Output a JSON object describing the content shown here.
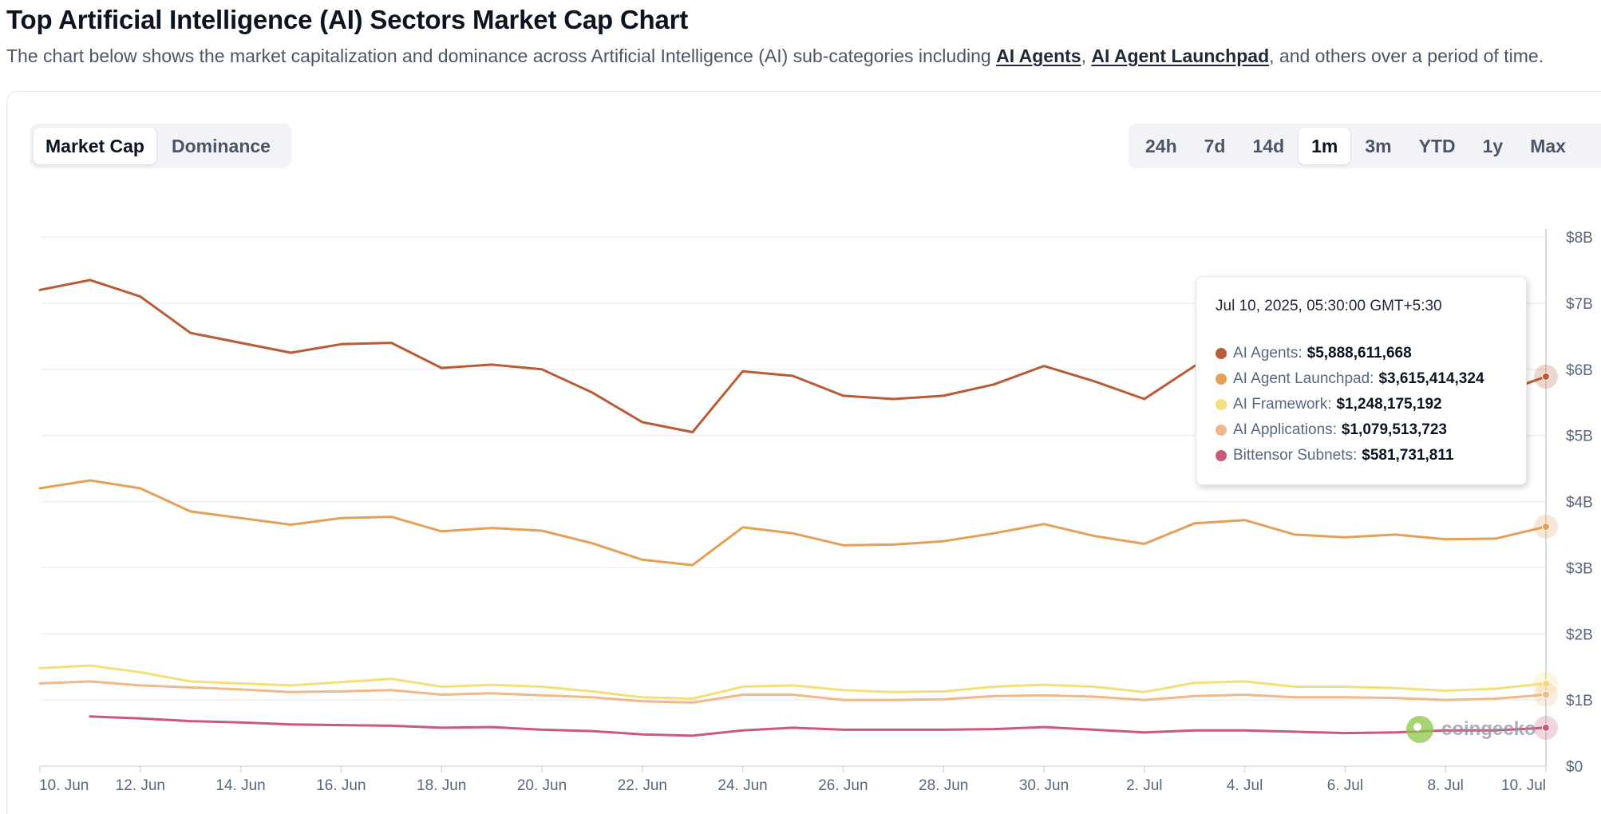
{
  "page": {
    "title": "Top Artificial Intelligence (AI) Sectors Market Cap Chart",
    "desc_before": "The chart below shows the market capitalization and dominance across Artificial Intelligence (AI) sub-categories including ",
    "link1": "AI Agents",
    "desc_sep": ", ",
    "link2": "AI Agent Launchpad",
    "desc_after": ", and others over a period of time."
  },
  "toggles": {
    "market_cap": "Market Cap",
    "dominance": "Dominance",
    "active": "Market Cap"
  },
  "ranges": {
    "items": [
      "24h",
      "7d",
      "14d",
      "1m",
      "3m",
      "YTD",
      "1y",
      "Max"
    ],
    "active": "1m"
  },
  "tooltip": {
    "time": "Jul 10, 2025, 05:30:00 GMT+5:30",
    "rows": [
      {
        "name": "AI Agents",
        "value": "$5,888,611,668",
        "color": "#b95b34"
      },
      {
        "name": "AI Agent Launchpad",
        "value": "$3,615,414,324",
        "color": "#e5a057"
      },
      {
        "name": "AI Framework",
        "value": "$1,248,175,192",
        "color": "#f3e07a"
      },
      {
        "name": "AI Applications",
        "value": "$1,079,513,723",
        "color": "#f1b889"
      },
      {
        "name": "Bittensor Subnets",
        "value": "$581,731,811",
        "color": "#c95b79"
      }
    ]
  },
  "watermark": {
    "text": "coingecko"
  },
  "chart_data": {
    "type": "line",
    "x": [
      "10 Jun",
      "11 Jun",
      "12 Jun",
      "13 Jun",
      "14 Jun",
      "15 Jun",
      "16 Jun",
      "17 Jun",
      "18 Jun",
      "19 Jun",
      "20 Jun",
      "21 Jun",
      "22 Jun",
      "23 Jun",
      "24 Jun",
      "25 Jun",
      "26 Jun",
      "27 Jun",
      "28 Jun",
      "29 Jun",
      "30 Jun",
      "1 Jul",
      "2 Jul",
      "3 Jul",
      "4 Jul",
      "5 Jul",
      "6 Jul",
      "7 Jul",
      "8 Jul",
      "9 Jul",
      "10 Jul"
    ],
    "x_tick_labels": [
      "10. Jun",
      "12. Jun",
      "14. Jun",
      "16. Jun",
      "18. Jun",
      "20. Jun",
      "22. Jun",
      "24. Jun",
      "26. Jun",
      "28. Jun",
      "30. Jun",
      "2. Jul",
      "4. Jul",
      "6. Jul",
      "8. Jul",
      "10. Jul"
    ],
    "y_tick_labels": [
      "$0",
      "$1B",
      "$2B",
      "$3B",
      "$4B",
      "$5B",
      "$6B",
      "$7B",
      "$8B"
    ],
    "ylim": [
      0,
      8
    ],
    "y_unit": "billion USD",
    "grid": true,
    "series": [
      {
        "name": "AI Agents",
        "color": "#b95b34",
        "values": [
          7.2,
          7.35,
          7.1,
          6.55,
          6.4,
          6.25,
          6.38,
          6.4,
          6.02,
          6.07,
          6.0,
          5.65,
          5.2,
          5.05,
          5.97,
          5.9,
          5.6,
          5.55,
          5.6,
          5.77,
          6.05,
          5.82,
          5.55,
          6.05,
          6.25,
          5.95,
          5.8,
          5.5,
          5.95,
          5.62,
          5.89
        ]
      },
      {
        "name": "AI Agent Launchpad",
        "color": "#e5a057",
        "values": [
          4.2,
          4.32,
          4.2,
          3.85,
          3.75,
          3.65,
          3.75,
          3.77,
          3.55,
          3.6,
          3.56,
          3.37,
          3.12,
          3.04,
          3.61,
          3.52,
          3.34,
          3.35,
          3.4,
          3.52,
          3.66,
          3.48,
          3.36,
          3.67,
          3.72,
          3.5,
          3.46,
          3.5,
          3.43,
          3.44,
          3.62
        ]
      },
      {
        "name": "AI Framework",
        "color": "#f3e07a",
        "values": [
          1.48,
          1.52,
          1.42,
          1.28,
          1.25,
          1.22,
          1.27,
          1.32,
          1.2,
          1.23,
          1.2,
          1.13,
          1.04,
          1.02,
          1.2,
          1.22,
          1.15,
          1.12,
          1.13,
          1.2,
          1.23,
          1.2,
          1.12,
          1.26,
          1.28,
          1.2,
          1.2,
          1.18,
          1.14,
          1.17,
          1.25
        ]
      },
      {
        "name": "AI Applications",
        "color": "#f1b889",
        "values": [
          1.25,
          1.28,
          1.22,
          1.19,
          1.16,
          1.12,
          1.13,
          1.15,
          1.08,
          1.1,
          1.07,
          1.04,
          0.98,
          0.96,
          1.08,
          1.08,
          1.0,
          1.0,
          1.01,
          1.06,
          1.07,
          1.05,
          1.0,
          1.06,
          1.08,
          1.04,
          1.04,
          1.03,
          1.0,
          1.02,
          1.08
        ]
      },
      {
        "name": "Bittensor Subnets",
        "color": "#c95b79",
        "values": [
          null,
          0.75,
          0.72,
          0.68,
          0.66,
          0.63,
          0.62,
          0.61,
          0.58,
          0.59,
          0.55,
          0.53,
          0.48,
          0.46,
          0.54,
          0.58,
          0.55,
          0.55,
          0.55,
          0.56,
          0.59,
          0.55,
          0.51,
          0.54,
          0.54,
          0.52,
          0.5,
          0.51,
          0.54,
          0.54,
          0.58
        ]
      }
    ]
  }
}
